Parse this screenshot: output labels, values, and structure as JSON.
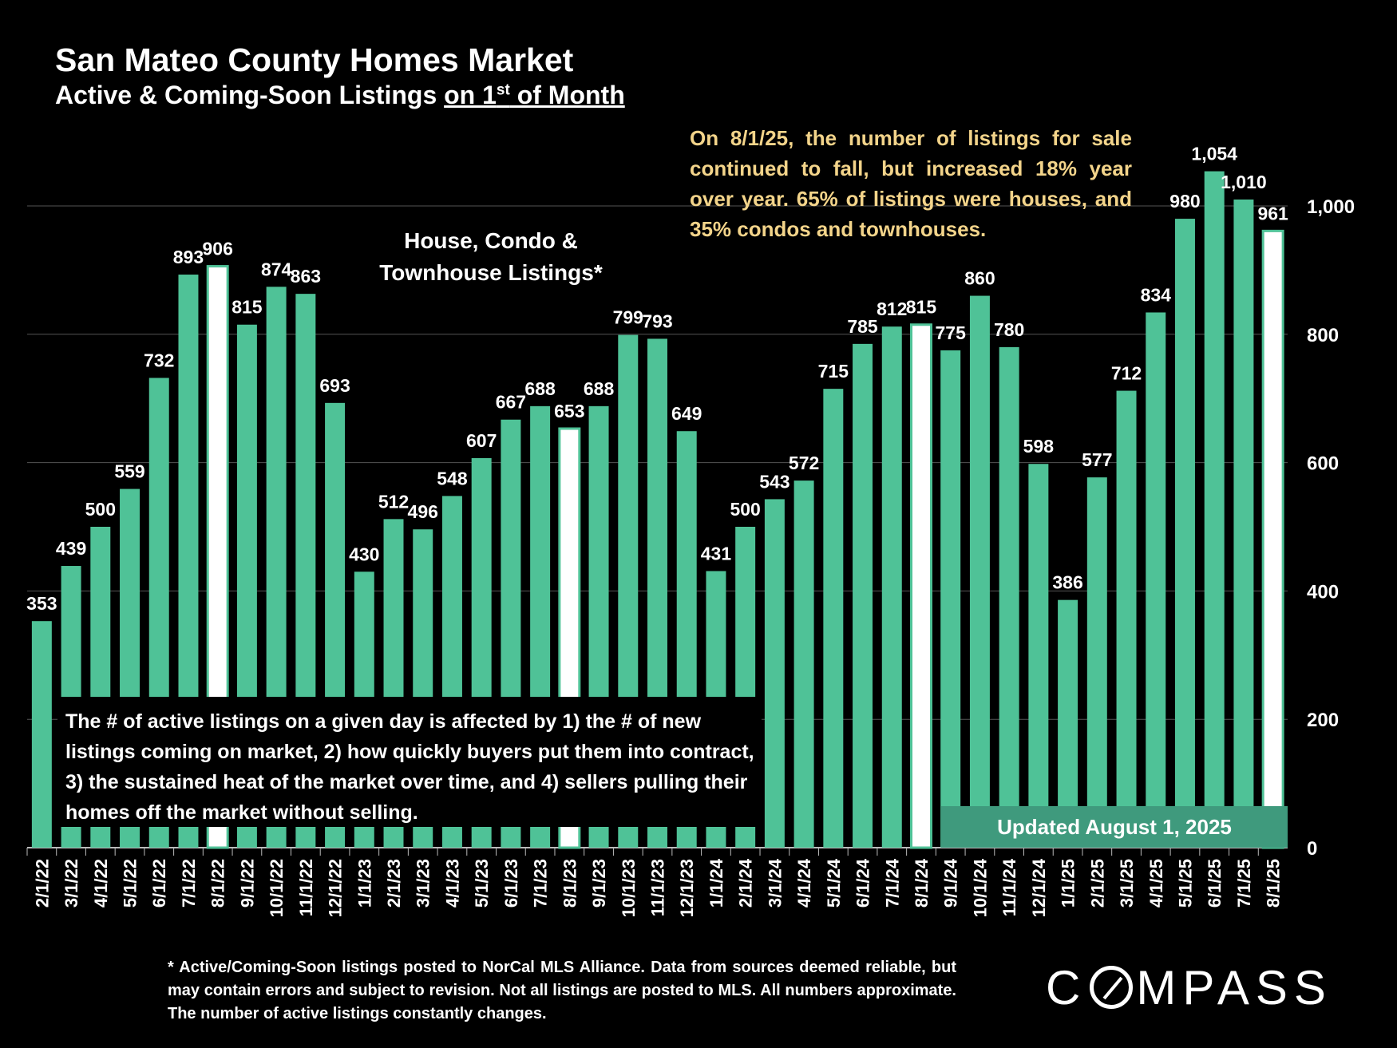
{
  "title": "San Mateo County Homes Market",
  "subtitle": {
    "part1": "Active & Coming-Soon Listings ",
    "part2": "on 1",
    "sup": "st",
    "part3": " of Month"
  },
  "annotation": "On 8/1/25, the number of listings for sale continued to fall, but increased 18% year over year. 65% of listings were houses, and 35% condos and townhouses.",
  "series_label_line1": "House, Condo &",
  "series_label_line2": "Townhouse Listings*",
  "note": "The # of active listings on a given day is affected by 1) the # of new listings coming on market, 2) how quickly buyers put them into contract, 3) the sustained heat of the market over time, and 4) sellers pulling their homes off the market without selling.",
  "updated": "Updated August 1, 2025",
  "footnote": "* Active/Coming-Soon listings posted to NorCal MLS Alliance.  Data from sources deemed reliable, but may contain errors and subject to revision.  Not all listings are posted to MLS. All numbers approximate. The number of active listings constantly changes.",
  "logo": {
    "pre": "C",
    "post": "MPASS"
  },
  "colors": {
    "bar": "#4fc297",
    "highlight": "#ffffff",
    "grid": "#555555",
    "background": "#000000",
    "accent_text": "#f3d48a",
    "updated_box": "#3f9a7d"
  },
  "chart_data": {
    "type": "bar",
    "title": "San Mateo County Homes Market",
    "ylabel": "",
    "xlabel": "",
    "ylim": [
      0,
      1080
    ],
    "yticks": [
      0,
      200,
      400,
      600,
      800,
      1000
    ],
    "ytick_labels": [
      "0",
      "200",
      "400",
      "600",
      "800",
      "1,000"
    ],
    "grid": true,
    "categories": [
      "2/1/22",
      "3/1/22",
      "4/1/22",
      "5/1/22",
      "6/1/22",
      "7/1/22",
      "8/1/22",
      "9/1/22",
      "10/1/22",
      "11/1/22",
      "12/1/22",
      "1/1/23",
      "2/1/23",
      "3/1/23",
      "4/1/23",
      "5/1/23",
      "6/1/23",
      "7/1/23",
      "8/1/23",
      "9/1/23",
      "10/1/23",
      "11/1/23",
      "12/1/23",
      "1/1/24",
      "2/1/24",
      "3/1/24",
      "4/1/24",
      "5/1/24",
      "6/1/24",
      "7/1/24",
      "8/1/24",
      "9/1/24",
      "10/1/24",
      "11/1/24",
      "12/1/24",
      "1/1/25",
      "2/1/25",
      "3/1/25",
      "4/1/25",
      "5/1/25",
      "6/1/25",
      "7/1/25",
      "8/1/25"
    ],
    "values": [
      353,
      439,
      500,
      559,
      732,
      893,
      906,
      815,
      874,
      863,
      693,
      430,
      512,
      496,
      548,
      607,
      667,
      688,
      653,
      688,
      799,
      793,
      649,
      431,
      500,
      543,
      572,
      715,
      785,
      812,
      815,
      775,
      860,
      780,
      598,
      386,
      577,
      712,
      834,
      980,
      1054,
      1010,
      961
    ],
    "value_labels": [
      "353",
      "439",
      "500",
      "559",
      "732",
      "893",
      "906",
      "815",
      "874",
      "863",
      "693",
      "430",
      "512",
      "496",
      "548",
      "607",
      "667",
      "688",
      "653",
      "688",
      "799",
      "793",
      "649",
      "431",
      "500",
      "543",
      "572",
      "715",
      "785",
      "812",
      "815",
      "775",
      "860",
      "780",
      "598",
      "386",
      "577",
      "712",
      "834",
      "980",
      "1,054",
      "1,010",
      "961"
    ],
    "highlighted": [
      "8/1/22",
      "8/1/23",
      "8/1/24",
      "8/1/25"
    ]
  }
}
